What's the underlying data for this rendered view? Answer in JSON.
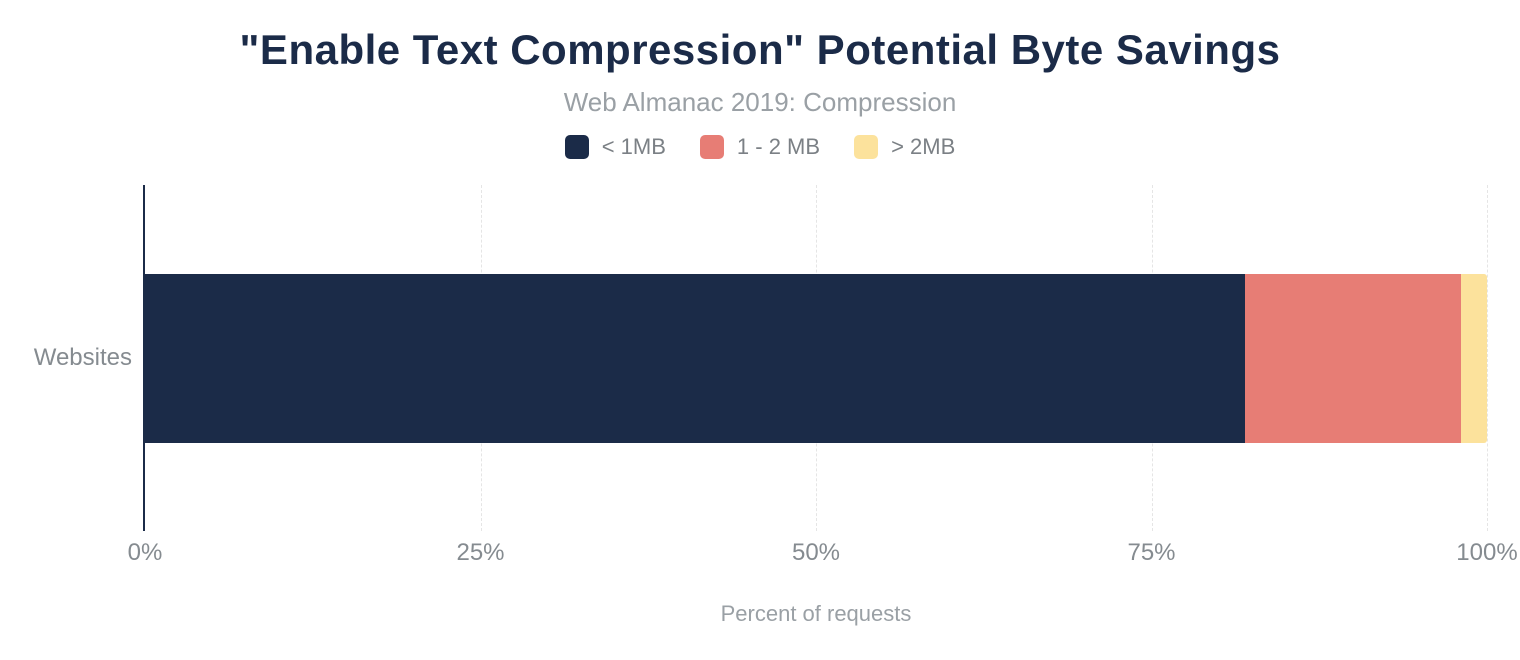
{
  "chart_data": {
    "type": "bar",
    "orientation": "horizontal",
    "stacked": true,
    "title": "\"Enable Text Compression\" Potential Byte Savings",
    "subtitle": "Web Almanac 2019: Compression",
    "categories": [
      "Websites"
    ],
    "series": [
      {
        "name": "< 1MB",
        "value": 82,
        "color": "#1b2b48"
      },
      {
        "name": "1 - 2 MB",
        "value": 16.1,
        "color": "#e77d75"
      },
      {
        "name": "> 2MB",
        "value": 1.9,
        "color": "#fce29c"
      }
    ],
    "xlabel": "Percent of requests",
    "x_ticks": [
      "0%",
      "25%",
      "50%",
      "75%",
      "100%"
    ],
    "xlim": [
      0,
      100
    ],
    "grid": "dashed-vertical-at-ticks",
    "legend_position": "top",
    "colors": {
      "axis_line": "#1b2b48",
      "gridline": "#e5e5e5",
      "title_text": "#1b2b48",
      "subtitle_text": "#9aa0a5",
      "legend_text": "#7b8085",
      "tick_text": "#858b90",
      "axis_label_text": "#9aa0a5"
    }
  }
}
